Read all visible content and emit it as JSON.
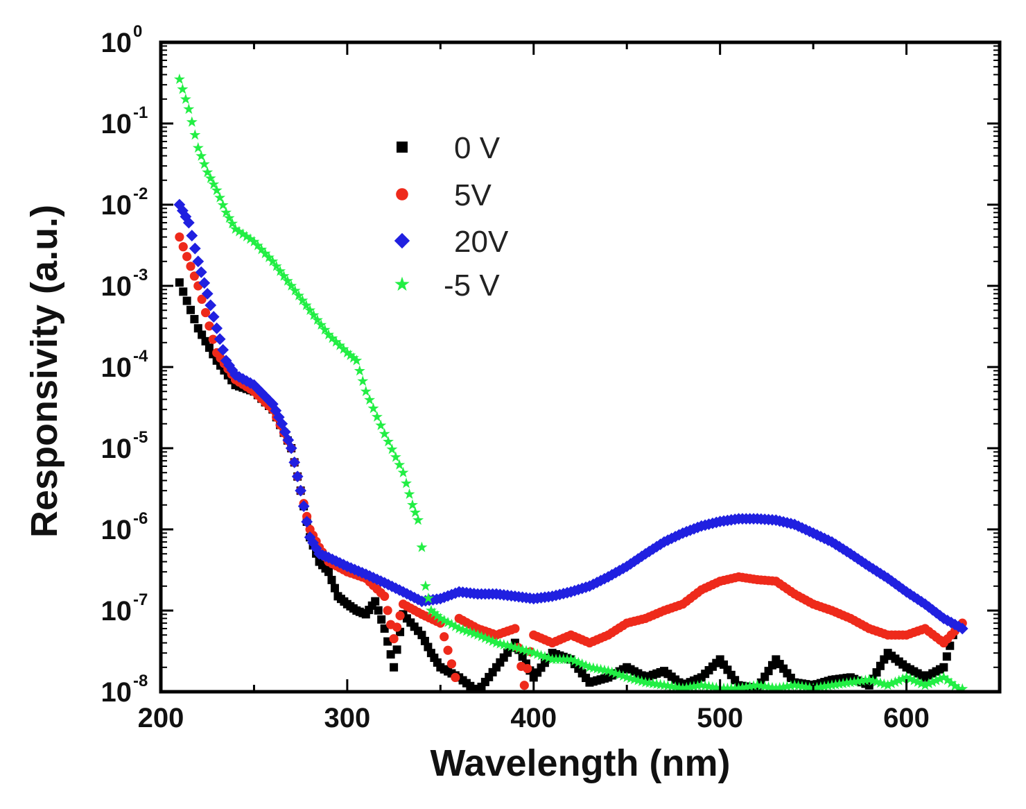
{
  "chart_data": {
    "type": "scatter",
    "title": "",
    "xlabel": "Wavelength (nm)",
    "ylabel": "Responsivity (a.u.)",
    "xlim": [
      200,
      650
    ],
    "ylim": [
      1e-08,
      1
    ],
    "yscale": "log",
    "grid": false,
    "legend_position": "upper-center",
    "x_ticks": [
      {
        "value": 200,
        "label": "200"
      },
      {
        "value": 300,
        "label": "300"
      },
      {
        "value": 400,
        "label": "400"
      },
      {
        "value": 500,
        "label": "500"
      },
      {
        "value": 600,
        "label": "600"
      }
    ],
    "y_ticks": [
      {
        "exp": 0,
        "base": "10",
        "sup": "0"
      },
      {
        "exp": -1,
        "base": "10",
        "sup": "-1"
      },
      {
        "exp": -2,
        "base": "10",
        "sup": "-2"
      },
      {
        "exp": -3,
        "base": "10",
        "sup": "-3"
      },
      {
        "exp": -4,
        "base": "10",
        "sup": "-4"
      },
      {
        "exp": -5,
        "base": "10",
        "sup": "-5"
      },
      {
        "exp": -6,
        "base": "10",
        "sup": "-6"
      },
      {
        "exp": -7,
        "base": "10",
        "sup": "-7"
      },
      {
        "exp": -8,
        "base": "10",
        "sup": "-8"
      }
    ],
    "series": [
      {
        "name": "0 V",
        "marker": "square",
        "color": "#000000",
        "x": [
          210,
          220,
          230,
          240,
          250,
          260,
          270,
          275,
          280,
          285,
          290,
          295,
          300,
          305,
          310,
          315,
          320,
          325,
          330,
          340,
          345,
          350,
          360,
          370,
          380,
          390,
          400,
          410,
          420,
          430,
          440,
          450,
          460,
          470,
          480,
          490,
          500,
          510,
          520,
          530,
          540,
          550,
          560,
          570,
          580,
          590,
          600,
          610,
          620,
          625
        ],
        "y": [
          0.0011,
          0.0003,
          0.00012,
          6e-05,
          5e-05,
          3e-05,
          1e-05,
          3e-06,
          8e-07,
          4e-07,
          3e-07,
          1.5e-07,
          1.2e-07,
          1e-07,
          9e-08,
          1.3e-07,
          6e-08,
          2e-08,
          9e-08,
          5e-08,
          3e-08,
          2e-08,
          1.5e-08,
          1e-08,
          2e-08,
          4e-08,
          1.5e-08,
          3e-08,
          2.5e-08,
          1.3e-08,
          1.5e-08,
          2e-08,
          1.5e-08,
          1.8e-08,
          1.2e-08,
          1.5e-08,
          2.5e-08,
          1.2e-08,
          1.1e-08,
          2.5e-08,
          1.3e-08,
          1.2e-08,
          1.4e-08,
          1.5e-08,
          1.2e-08,
          3e-08,
          2e-08,
          1.5e-08,
          2e-08,
          5e-08
        ]
      },
      {
        "name": "5V",
        "marker": "circle",
        "color": "#ee2a1b",
        "x": [
          210,
          220,
          230,
          240,
          250,
          260,
          270,
          275,
          280,
          285,
          290,
          300,
          310,
          320,
          325,
          330,
          340,
          350,
          358,
          360,
          370,
          380,
          390,
          395,
          400,
          410,
          420,
          430,
          440,
          450,
          460,
          470,
          480,
          490,
          500,
          510,
          520,
          530,
          540,
          550,
          560,
          570,
          580,
          590,
          600,
          610,
          620,
          630
        ],
        "y": [
          0.004,
          0.001,
          0.00015,
          7e-05,
          5e-05,
          3e-05,
          1e-05,
          3e-06,
          1e-06,
          6e-07,
          4e-07,
          3e-07,
          2.5e-07,
          1.5e-07,
          4.5e-08,
          1.2e-07,
          9e-08,
          7e-08,
          1.5e-08,
          8e-08,
          6e-08,
          5e-08,
          6e-08,
          1.2e-08,
          5e-08,
          4e-08,
          5e-08,
          4e-08,
          5e-08,
          7e-08,
          8e-08,
          1e-07,
          1.2e-07,
          1.8e-07,
          2.3e-07,
          2.6e-07,
          2.4e-07,
          2.3e-07,
          1.6e-07,
          1.2e-07,
          1e-07,
          8e-08,
          6e-08,
          5e-08,
          5e-08,
          6e-08,
          4e-08,
          7e-08
        ]
      },
      {
        "name": "20V",
        "marker": "diamond",
        "color": "#2020e0",
        "x": [
          210,
          215,
          220,
          225,
          230,
          235,
          240,
          250,
          260,
          265,
          270,
          275,
          280,
          285,
          290,
          300,
          310,
          320,
          330,
          340,
          350,
          360,
          370,
          380,
          390,
          400,
          410,
          420,
          430,
          440,
          450,
          460,
          470,
          480,
          490,
          500,
          510,
          520,
          530,
          540,
          550,
          560,
          570,
          580,
          590,
          600,
          610,
          620,
          630
        ],
        "y": [
          0.01,
          0.006,
          0.002,
          0.0008,
          0.0003,
          0.00012,
          8e-05,
          6e-05,
          3.5e-05,
          2e-05,
          1e-05,
          3e-06,
          8e-07,
          5e-07,
          4.5e-07,
          3.5e-07,
          2.8e-07,
          2.2e-07,
          1.7e-07,
          1.3e-07,
          1.4e-07,
          1.7e-07,
          1.6e-07,
          1.6e-07,
          1.5e-07,
          1.4e-07,
          1.5e-07,
          1.7e-07,
          2e-07,
          2.6e-07,
          3.5e-07,
          5e-07,
          7e-07,
          9e-07,
          1.1e-06,
          1.25e-06,
          1.35e-06,
          1.35e-06,
          1.3e-06,
          1.15e-06,
          9e-07,
          7e-07,
          5e-07,
          3.5e-07,
          2.5e-07,
          1.7e-07,
          1.2e-07,
          8e-08,
          6e-08
        ]
      },
      {
        "name": "-5 V",
        "marker": "star",
        "color": "#22ee44",
        "x": [
          210,
          215,
          220,
          225,
          230,
          235,
          240,
          250,
          260,
          270,
          280,
          290,
          300,
          305,
          310,
          320,
          330,
          335,
          338,
          340,
          342,
          345,
          350,
          360,
          370,
          380,
          390,
          400,
          410,
          420,
          430,
          440,
          450,
          460,
          470,
          480,
          490,
          500,
          510,
          520,
          530,
          540,
          550,
          560,
          570,
          580,
          590,
          600,
          610,
          620,
          630
        ],
        "y": [
          0.35,
          0.15,
          0.05,
          0.025,
          0.015,
          0.008,
          0.005,
          0.0035,
          0.002,
          0.001,
          0.0005,
          0.00025,
          0.00015,
          0.00012,
          5e-05,
          1.5e-05,
          5e-06,
          2e-06,
          1.3e-06,
          6e-07,
          2e-07,
          1e-07,
          8e-08,
          6e-08,
          5e-08,
          4e-08,
          3.5e-08,
          3e-08,
          2.5e-08,
          2.5e-08,
          2e-08,
          1.8e-08,
          1.5e-08,
          1.3e-08,
          1.2e-08,
          1.1e-08,
          1.2e-08,
          1.1e-08,
          1.1e-08,
          1.2e-08,
          1.1e-08,
          1.2e-08,
          1.1e-08,
          1.2e-08,
          1.3e-08,
          1.4e-08,
          1.2e-08,
          1.5e-08,
          1.2e-08,
          1.5e-08,
          1e-08
        ]
      }
    ]
  }
}
